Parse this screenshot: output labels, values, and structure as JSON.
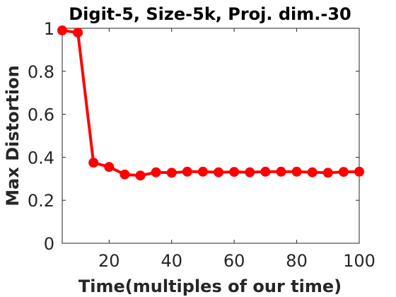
{
  "chart_data": {
    "type": "line",
    "title": "Digit-5, Size-5k, Proj. dim.-30",
    "xlabel": "Time(multiples of our time)",
    "ylabel": "Max Distortion",
    "xlim": [
      5,
      100
    ],
    "ylim": [
      0,
      1
    ],
    "xticks": [
      20,
      40,
      60,
      80,
      100
    ],
    "xtick_labels": [
      "20",
      "40",
      "60",
      "80",
      "100"
    ],
    "yticks": [
      0,
      0.2,
      0.4,
      0.6,
      0.8,
      1
    ],
    "ytick_labels": [
      "0",
      "0.2",
      "0.4",
      "0.6",
      "0.8",
      "1"
    ],
    "grid": false,
    "series": [
      {
        "color": "#ff0000",
        "marker": "circle",
        "x": [
          5,
          10,
          15,
          20,
          25,
          30,
          35,
          40,
          45,
          50,
          55,
          60,
          65,
          70,
          75,
          80,
          85,
          90,
          95,
          100
        ],
        "y": [
          0.99,
          0.98,
          0.375,
          0.355,
          0.32,
          0.315,
          0.33,
          0.328,
          0.333,
          0.333,
          0.33,
          0.332,
          0.33,
          0.333,
          0.333,
          0.333,
          0.33,
          0.328,
          0.332,
          0.333
        ]
      }
    ]
  }
}
